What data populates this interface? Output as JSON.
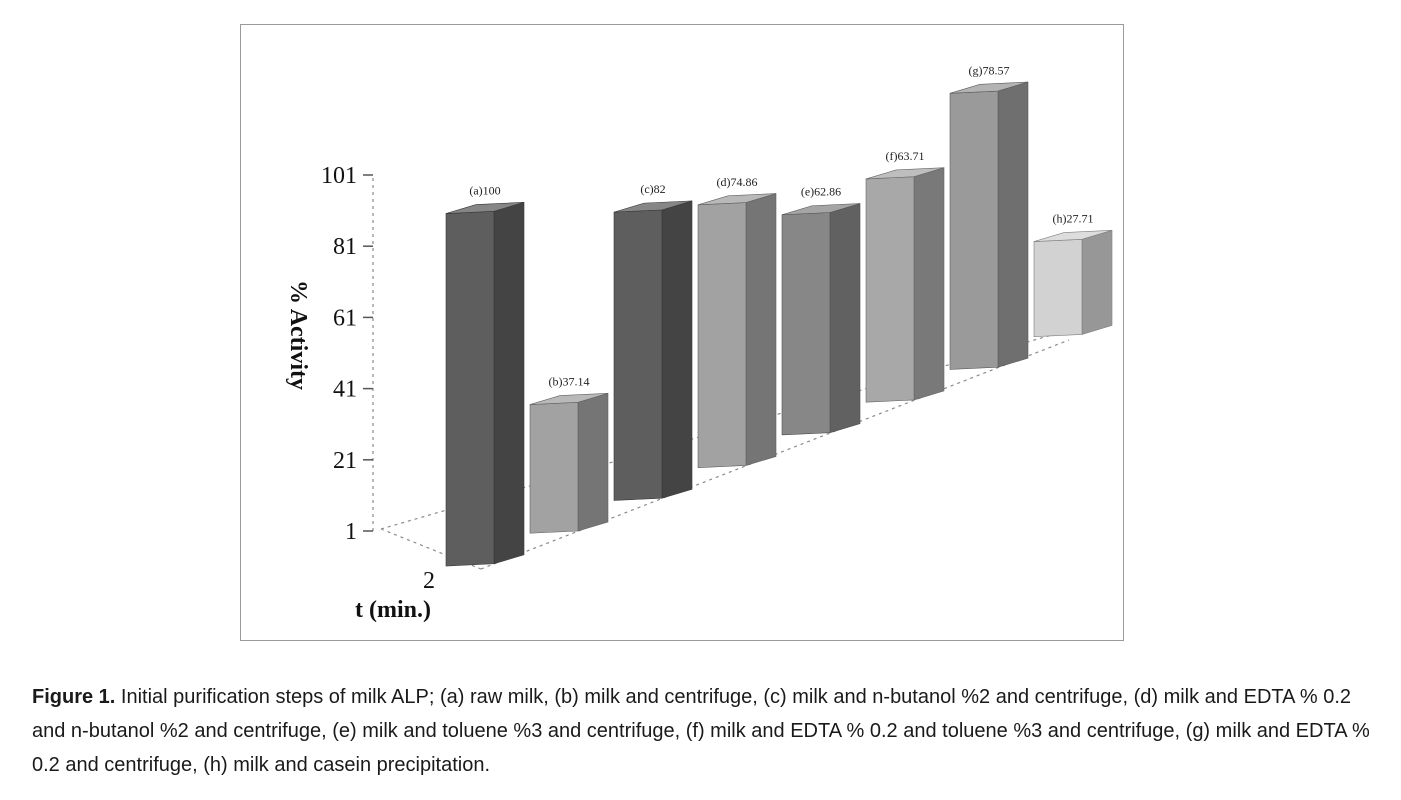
{
  "chart_data": {
    "type": "bar",
    "categories": [
      "(a)",
      "(b)",
      "(c)",
      "(d)",
      "(e)",
      "(f)",
      "(g)",
      "(h)"
    ],
    "values": [
      100,
      37.14,
      82,
      74.86,
      62.86,
      63.71,
      78.57,
      27.71
    ],
    "data_labels": [
      "(a)100",
      "(b)37.14",
      "(c)82",
      "(d)74.86",
      "(e)62.86",
      "(f)63.71",
      "(g)78.57",
      "(h)27.71"
    ],
    "title": "",
    "ylabel": "% Activity",
    "xlabel": "t (min.)",
    "x_tick": "2",
    "ylim": [
      1,
      101
    ],
    "y_ticks": [
      "1",
      "21",
      "41",
      "61",
      "81",
      "101"
    ],
    "grid": false,
    "colors": [
      "#5e5e5e",
      "#a2a2a2",
      "#5e5e5e",
      "#a2a2a2",
      "#878787",
      "#a8a8a8",
      "#9a9a9a",
      "#d2d2d2"
    ]
  },
  "caption": {
    "label": "Figure 1.",
    "text": "Initial purification steps of milk ALP; (a) raw milk, (b) milk and centrifuge, (c) milk and n-butanol %2 and centrifuge,  (d) milk and EDTA % 0.2 and n-butanol %2 and centrifuge, (e) milk and toluene %3 and centrifuge, (f) milk and EDTA % 0.2 and toluene %3 and centrifuge, (g) milk and EDTA % 0.2 and centrifuge, (h) milk and casein precipitation."
  }
}
